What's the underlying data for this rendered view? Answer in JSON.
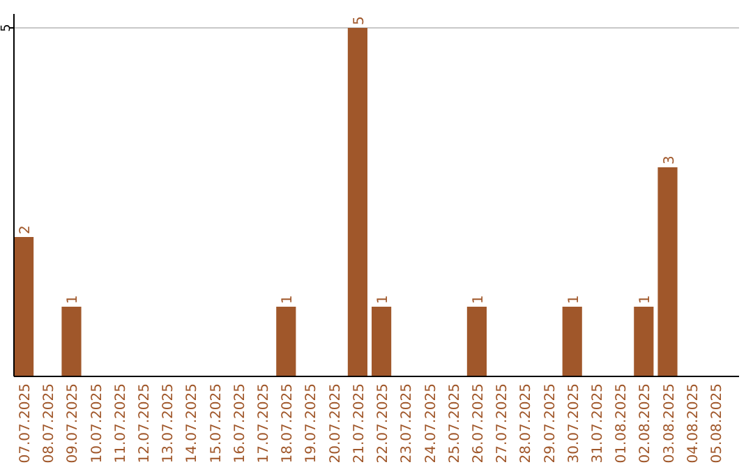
{
  "chart_data": {
    "type": "bar",
    "categories": [
      "07.07.2025",
      "08.07.2025",
      "09.07.2025",
      "10.07.2025",
      "11.07.2025",
      "12.07.2025",
      "13.07.2025",
      "14.07.2025",
      "15.07.2025",
      "16.07.2025",
      "17.07.2025",
      "18.07.2025",
      "19.07.2025",
      "20.07.2025",
      "21.07.2025",
      "22.07.2025",
      "23.07.2025",
      "24.07.2025",
      "25.07.2025",
      "26.07.2025",
      "27.07.2025",
      "28.07.2025",
      "29.07.2025",
      "30.07.2025",
      "31.07.2025",
      "01.08.2025",
      "02.08.2025",
      "03.08.2025",
      "04.08.2025",
      "05.08.2025"
    ],
    "values": [
      2,
      0,
      1,
      0,
      0,
      0,
      0,
      0,
      0,
      0,
      0,
      1,
      0,
      0,
      5,
      1,
      0,
      0,
      0,
      1,
      0,
      0,
      0,
      1,
      0,
      0,
      1,
      3,
      0,
      0
    ],
    "value_labels": [
      "2",
      null,
      "1",
      null,
      null,
      null,
      null,
      null,
      null,
      null,
      null,
      "1",
      null,
      null,
      "5",
      "1",
      null,
      null,
      null,
      "1",
      null,
      null,
      null,
      "1",
      null,
      null,
      "1",
      "3",
      null,
      null
    ],
    "color": "#a0572a",
    "ylim": [
      0,
      5.2
    ],
    "yticks": [
      5
    ],
    "grid": "y"
  }
}
